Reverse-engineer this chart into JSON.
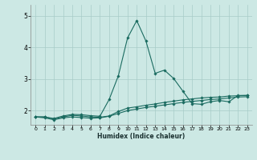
{
  "title": "",
  "xlabel": "Humidex (Indice chaleur)",
  "background_color": "#cce8e4",
  "line_color": "#1a6b60",
  "grid_color": "#a8ccc8",
  "xlim": [
    -0.5,
    23.5
  ],
  "ylim": [
    1.55,
    5.35
  ],
  "yticks": [
    2,
    3,
    4,
    5
  ],
  "xticks": [
    0,
    1,
    2,
    3,
    4,
    5,
    6,
    7,
    8,
    9,
    10,
    11,
    12,
    13,
    14,
    15,
    16,
    17,
    18,
    19,
    20,
    21,
    22,
    23
  ],
  "series": [
    {
      "x": [
        0,
        1,
        2,
        3,
        4,
        5,
        6,
        7,
        8,
        9,
        10,
        11,
        12,
        13,
        14,
        15,
        16,
        17,
        18,
        19,
        20,
        21,
        22,
        23
      ],
      "y": [
        1.8,
        1.8,
        1.75,
        1.83,
        1.88,
        1.87,
        1.84,
        1.82,
        2.35,
        3.1,
        4.3,
        4.85,
        4.2,
        3.18,
        3.28,
        3.02,
        2.62,
        2.22,
        2.2,
        2.28,
        2.32,
        2.28,
        2.48,
        2.48
      ]
    },
    {
      "x": [
        0,
        1,
        2,
        3,
        4,
        5,
        6,
        7,
        8,
        9,
        10,
        11,
        12,
        13,
        14,
        15,
        16,
        17,
        18,
        19,
        20,
        21,
        22,
        23
      ],
      "y": [
        1.8,
        1.8,
        1.73,
        1.8,
        1.85,
        1.83,
        1.8,
        1.79,
        1.83,
        1.97,
        2.08,
        2.12,
        2.17,
        2.21,
        2.26,
        2.3,
        2.34,
        2.37,
        2.4,
        2.42,
        2.43,
        2.46,
        2.47,
        2.48
      ]
    },
    {
      "x": [
        0,
        1,
        2,
        3,
        4,
        5,
        6,
        7,
        8,
        9,
        10,
        11,
        12,
        13,
        14,
        15,
        16,
        17,
        18,
        19,
        20,
        21,
        22,
        23
      ],
      "y": [
        1.8,
        1.77,
        1.71,
        1.77,
        1.8,
        1.78,
        1.76,
        1.77,
        1.82,
        1.91,
        2.0,
        2.05,
        2.1,
        2.14,
        2.18,
        2.22,
        2.26,
        2.29,
        2.32,
        2.35,
        2.37,
        2.4,
        2.43,
        2.44
      ]
    }
  ]
}
